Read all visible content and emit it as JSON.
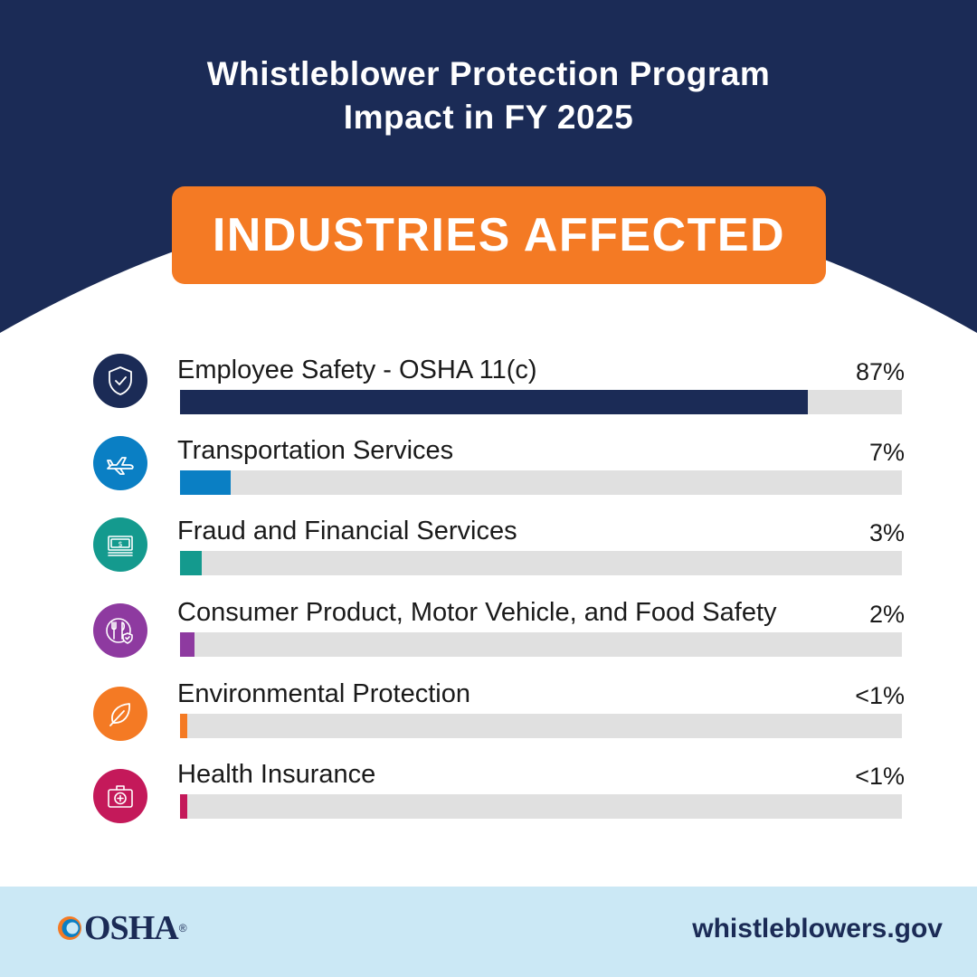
{
  "header": {
    "title_line1": "Whistleblower Protection Program",
    "title_line2": "Impact in FY 2025",
    "banner": "INDUSTRIES AFFECTED"
  },
  "colors": {
    "navy": "#1b2b56",
    "orange": "#f47a24",
    "track": "#e0e0e0",
    "footer": "#cbe8f5"
  },
  "chart_data": {
    "type": "bar",
    "orientation": "horizontal",
    "xlim": [
      0,
      100
    ],
    "categories": [
      "Employee Safety - OSHA 11(c)",
      "Transportation Services",
      "Fraud and Financial Services",
      "Consumer Product, Motor Vehicle, and Food Safety",
      "Environmental Protection",
      "Health Insurance"
    ],
    "values": [
      87,
      7,
      3,
      2,
      1,
      1
    ],
    "data_labels": [
      "87%",
      "7%",
      "3%",
      "2%",
      "<1%",
      "<1%"
    ],
    "bar_colors": [
      "#1b2b56",
      "#0a7fc4",
      "#149a8e",
      "#8e3aa0",
      "#f47a24",
      "#c4195a"
    ],
    "icons": [
      "shield-check-icon",
      "airplane-icon",
      "money-stack-icon",
      "utensils-shield-icon",
      "leaf-icon",
      "first-aid-kit-icon"
    ]
  },
  "footer": {
    "logo_text": "OSHA",
    "logo_mark": "®",
    "website": "whistleblowers.gov"
  }
}
